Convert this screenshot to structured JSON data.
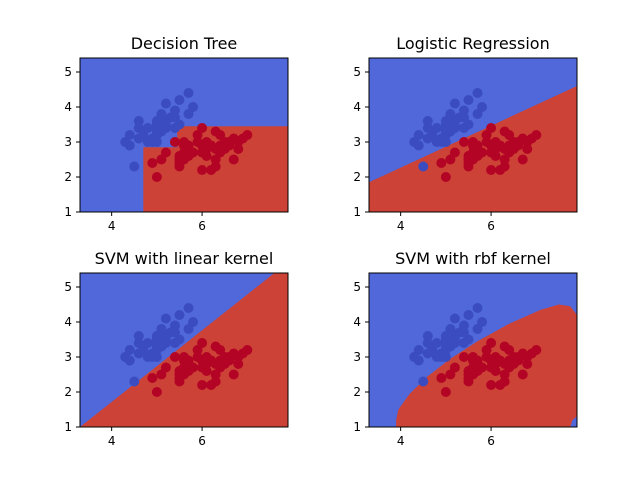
{
  "figure": {
    "background": "#ffffff",
    "colors": {
      "class_low_region": "#5068da",
      "class_high_region": "#cd4236",
      "class_low_point": "#3b4cc0",
      "class_high_point": "#b40426"
    }
  },
  "chart_data": [
    {
      "type": "scatter",
      "title": "Decision Tree",
      "xlim": [
        3.3,
        7.9
      ],
      "ylim": [
        1.0,
        5.4
      ],
      "xticks": [
        4,
        6
      ],
      "yticks": [
        1,
        2,
        3,
        4,
        5
      ],
      "decision_region": {
        "kind": "polygon",
        "high_class_polygon": [
          [
            4.7,
            1.0
          ],
          [
            7.9,
            1.0
          ],
          [
            7.9,
            3.45
          ],
          [
            5.45,
            3.45
          ],
          [
            5.45,
            2.85
          ],
          [
            4.7,
            2.85
          ]
        ]
      }
    },
    {
      "type": "scatter",
      "title": "Logistic Regression",
      "xlim": [
        3.3,
        7.9
      ],
      "ylim": [
        1.0,
        5.4
      ],
      "xticks": [
        4,
        6
      ],
      "yticks": [
        1,
        2,
        3,
        4,
        5
      ],
      "decision_region": {
        "kind": "polygon",
        "high_class_polygon": [
          [
            3.3,
            1.0
          ],
          [
            7.9,
            1.0
          ],
          [
            7.9,
            4.6
          ],
          [
            3.3,
            1.85
          ]
        ]
      }
    },
    {
      "type": "scatter",
      "title": "SVM with linear kernel",
      "xlim": [
        3.3,
        7.9
      ],
      "ylim": [
        1.0,
        5.4
      ],
      "xticks": [
        4,
        6
      ],
      "yticks": [
        1,
        2,
        3,
        4,
        5
      ],
      "decision_region": {
        "kind": "polygon",
        "high_class_polygon": [
          [
            3.3,
            1.0
          ],
          [
            7.9,
            1.0
          ],
          [
            7.9,
            5.4
          ],
          [
            7.6,
            5.4
          ]
        ]
      }
    },
    {
      "type": "scatter",
      "title": "SVM with rbf kernel",
      "xlim": [
        3.3,
        7.9
      ],
      "ylim": [
        1.0,
        5.4
      ],
      "xticks": [
        4,
        6
      ],
      "yticks": [
        1,
        2,
        3,
        4,
        5
      ],
      "decision_region": {
        "kind": "polygon",
        "high_class_polygon": [
          [
            3.9,
            1.0
          ],
          [
            7.75,
            1.0
          ],
          [
            7.8,
            1.2
          ],
          [
            7.9,
            1.3
          ],
          [
            7.9,
            4.2
          ],
          [
            7.75,
            4.45
          ],
          [
            7.5,
            4.5
          ],
          [
            7.1,
            4.35
          ],
          [
            6.4,
            3.95
          ],
          [
            5.7,
            3.45
          ],
          [
            5.1,
            2.95
          ],
          [
            4.6,
            2.45
          ],
          [
            4.2,
            1.95
          ],
          [
            3.95,
            1.5
          ],
          [
            3.9,
            1.2
          ]
        ]
      }
    }
  ],
  "shared_points": {
    "class_low": [
      [
        4.3,
        3.0
      ],
      [
        4.4,
        2.9
      ],
      [
        4.4,
        3.2
      ],
      [
        4.5,
        2.3
      ],
      [
        4.6,
        3.1
      ],
      [
        4.6,
        3.4
      ],
      [
        4.6,
        3.6
      ],
      [
        4.7,
        3.2
      ],
      [
        4.8,
        3.0
      ],
      [
        4.8,
        3.4
      ],
      [
        4.9,
        3.0
      ],
      [
        4.9,
        3.1
      ],
      [
        5.0,
        3.0
      ],
      [
        5.0,
        3.2
      ],
      [
        5.0,
        3.3
      ],
      [
        5.0,
        3.4
      ],
      [
        5.0,
        3.5
      ],
      [
        5.0,
        3.6
      ],
      [
        5.1,
        3.3
      ],
      [
        5.1,
        3.5
      ],
      [
        5.1,
        3.7
      ],
      [
        5.1,
        3.8
      ],
      [
        5.2,
        3.4
      ],
      [
        5.2,
        3.5
      ],
      [
        5.2,
        4.1
      ],
      [
        5.3,
        3.7
      ],
      [
        5.4,
        3.4
      ],
      [
        5.4,
        3.7
      ],
      [
        5.4,
        3.9
      ],
      [
        5.5,
        3.5
      ],
      [
        5.5,
        4.2
      ],
      [
        5.7,
        3.8
      ],
      [
        5.7,
        4.4
      ],
      [
        5.8,
        4.0
      ]
    ],
    "class_high": [
      [
        4.9,
        2.4
      ],
      [
        5.0,
        2.0
      ],
      [
        5.1,
        2.5
      ],
      [
        5.2,
        2.7
      ],
      [
        5.4,
        3.0
      ],
      [
        5.5,
        2.3
      ],
      [
        5.5,
        2.4
      ],
      [
        5.5,
        2.5
      ],
      [
        5.5,
        2.6
      ],
      [
        5.6,
        2.5
      ],
      [
        5.6,
        2.7
      ],
      [
        5.6,
        2.9
      ],
      [
        5.6,
        3.0
      ],
      [
        5.7,
        2.6
      ],
      [
        5.7,
        2.8
      ],
      [
        5.7,
        2.9
      ],
      [
        5.8,
        2.7
      ],
      [
        5.9,
        3.0
      ],
      [
        5.9,
        3.2
      ],
      [
        6.0,
        2.2
      ],
      [
        6.0,
        2.7
      ],
      [
        6.0,
        2.9
      ],
      [
        6.0,
        3.4
      ],
      [
        6.1,
        2.6
      ],
      [
        6.1,
        2.8
      ],
      [
        6.1,
        3.0
      ],
      [
        6.2,
        2.2
      ],
      [
        6.2,
        2.9
      ],
      [
        6.3,
        2.3
      ],
      [
        6.3,
        2.5
      ],
      [
        6.3,
        2.8
      ],
      [
        6.3,
        3.3
      ],
      [
        6.4,
        2.7
      ],
      [
        6.4,
        2.9
      ],
      [
        6.4,
        3.2
      ],
      [
        6.5,
        2.8
      ],
      [
        6.5,
        3.0
      ],
      [
        6.6,
        2.9
      ],
      [
        6.6,
        3.0
      ],
      [
        6.7,
        2.5
      ],
      [
        6.7,
        3.1
      ],
      [
        6.8,
        2.8
      ],
      [
        6.8,
        3.0
      ],
      [
        6.9,
        3.1
      ],
      [
        7.0,
        3.2
      ]
    ]
  }
}
